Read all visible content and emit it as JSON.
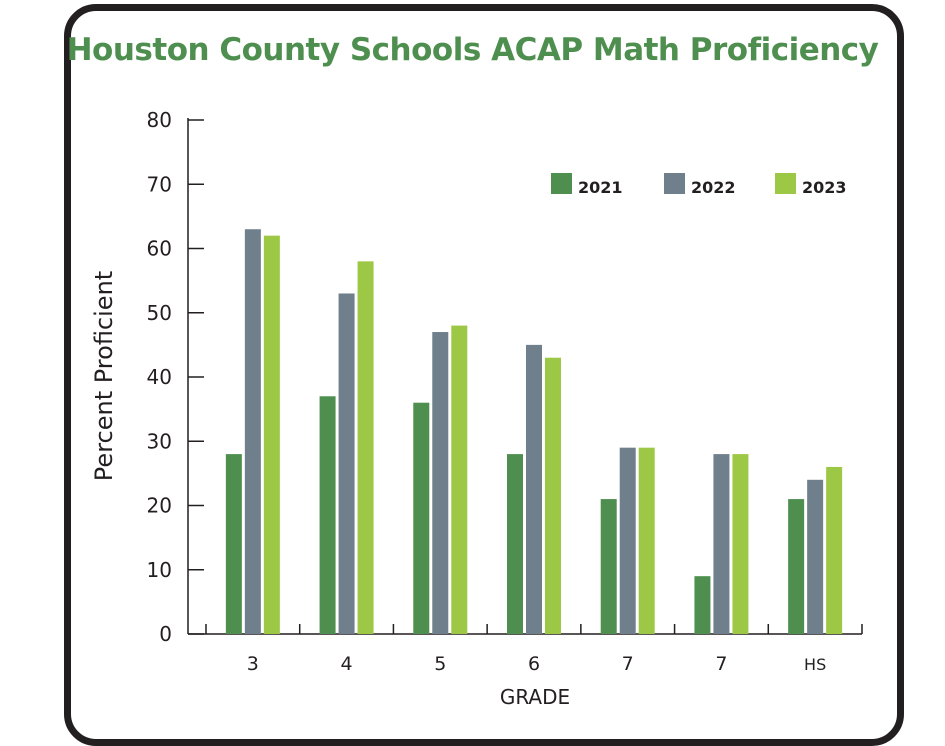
{
  "chart_data": {
    "type": "bar",
    "title": "Houston County Schools ACAP Math Proficiency",
    "xlabel": "GRADE",
    "ylabel": "Percent Proficient",
    "ylim": [
      0,
      80
    ],
    "yticks": [
      0,
      10,
      20,
      30,
      40,
      50,
      60,
      70,
      80
    ],
    "categories": [
      "3",
      "4",
      "5",
      "6",
      "7",
      "7",
      "HS"
    ],
    "series": [
      {
        "name": "2021",
        "color": "#4e8f4f",
        "values": [
          28,
          37,
          36,
          28,
          21,
          9,
          21
        ]
      },
      {
        "name": "2022",
        "color": "#6f7f8c",
        "values": [
          63,
          53,
          47,
          45,
          29,
          28,
          24
        ]
      },
      {
        "name": "2023",
        "color": "#9dc846",
        "values": [
          62,
          58,
          48,
          43,
          29,
          28,
          26
        ]
      }
    ],
    "grid": false,
    "legend": "top-right"
  }
}
